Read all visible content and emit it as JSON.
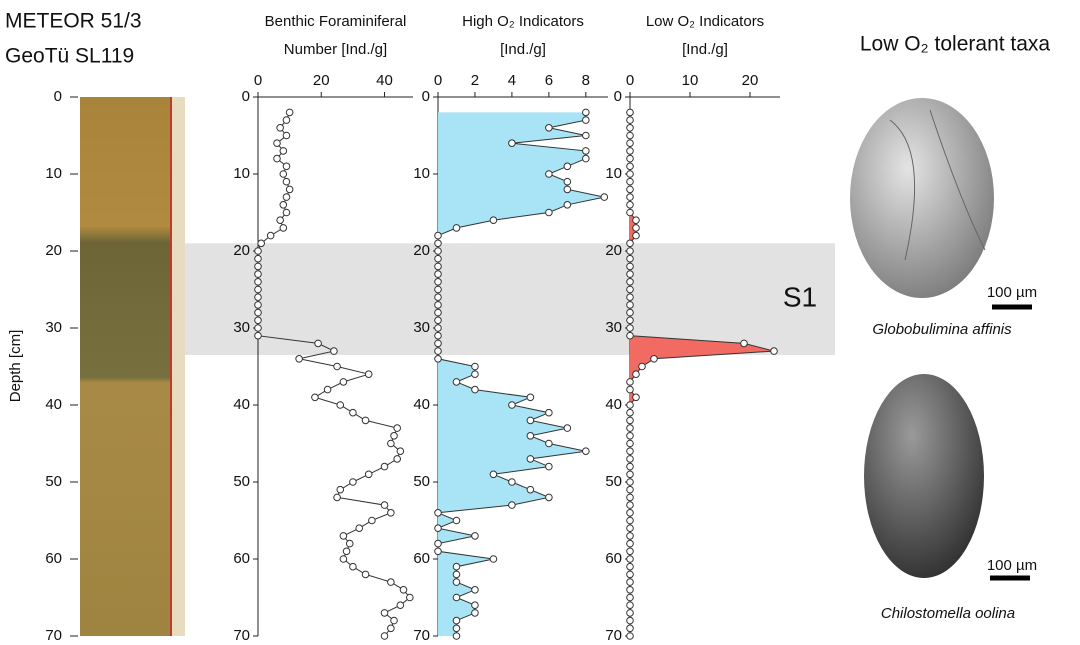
{
  "header": {
    "lines": [
      "METEOR 51/3",
      "GeoTü SL119"
    ]
  },
  "depth_axis": {
    "label": "Depth [cm]",
    "ylim": [
      0,
      70
    ],
    "yticks": [
      0,
      10,
      20,
      30,
      40,
      50,
      60,
      70
    ]
  },
  "band": {
    "label": "S1",
    "ylim": [
      19,
      33.5
    ]
  },
  "chart_data": [
    {
      "type": "line",
      "title": "Benthic Foraminiferal",
      "xlabel": "Number [Ind./g]",
      "xlim": [
        0,
        49
      ],
      "xticks": [
        0,
        20,
        40
      ],
      "ylim": [
        0,
        70
      ],
      "yticks": [
        0,
        10,
        20,
        30,
        40,
        50,
        60,
        70
      ],
      "y": [
        2,
        3,
        4,
        5,
        6,
        7,
        8,
        9,
        10,
        11,
        12,
        13,
        14,
        15,
        16,
        17,
        18,
        19,
        20,
        21,
        22,
        23,
        24,
        25,
        26,
        27,
        28,
        29,
        30,
        31,
        32,
        33,
        34,
        35,
        36,
        37,
        38,
        39,
        40,
        41,
        42,
        43,
        44,
        45,
        46,
        47,
        48,
        49,
        50,
        51,
        52,
        53,
        54,
        55,
        56,
        57,
        58,
        59,
        60,
        61,
        62,
        63,
        64,
        65,
        66,
        67,
        68,
        69,
        70
      ],
      "values": [
        10,
        9,
        7,
        9,
        6,
        8,
        6,
        9,
        8,
        9,
        10,
        9,
        8,
        9,
        7,
        8,
        4,
        1,
        0,
        0,
        0,
        0,
        0,
        0,
        0,
        0,
        0,
        0,
        0,
        0,
        19,
        24,
        13,
        25,
        35,
        27,
        22,
        18,
        26,
        30,
        34,
        44,
        43,
        42,
        45,
        44,
        40,
        35,
        30,
        26,
        25,
        40,
        42,
        36,
        32,
        27,
        29,
        28,
        27,
        30,
        34,
        42,
        46,
        48,
        45,
        40,
        43,
        42,
        40
      ]
    },
    {
      "type": "area",
      "title": "High O₂ Indicators",
      "xlabel": "[Ind./g]",
      "color": "#a8e4f5",
      "xlim": [
        0,
        9.2
      ],
      "xticks": [
        0,
        2,
        4,
        6,
        8
      ],
      "ylim": [
        0,
        70
      ],
      "yticks": [
        0,
        10,
        20,
        30,
        40,
        50,
        60,
        70
      ],
      "y": [
        2,
        3,
        4,
        5,
        6,
        7,
        8,
        9,
        10,
        11,
        12,
        13,
        14,
        15,
        16,
        17,
        18,
        19,
        20,
        21,
        22,
        23,
        24,
        25,
        26,
        27,
        28,
        29,
        30,
        31,
        32,
        33,
        34,
        35,
        36,
        37,
        38,
        39,
        40,
        41,
        42,
        43,
        44,
        45,
        46,
        47,
        48,
        49,
        50,
        51,
        52,
        53,
        54,
        55,
        56,
        57,
        58,
        59,
        60,
        61,
        62,
        63,
        64,
        65,
        66,
        67,
        68,
        69,
        70
      ],
      "values": [
        8,
        8,
        6,
        8,
        4,
        8,
        8,
        7,
        6,
        7,
        7,
        9,
        7,
        6,
        3,
        1,
        0,
        0,
        0,
        0,
        0,
        0,
        0,
        0,
        0,
        0,
        0,
        0,
        0,
        0,
        0,
        0,
        0,
        2,
        2,
        1,
        2,
        5,
        4,
        6,
        5,
        7,
        5,
        6,
        8,
        5,
        6,
        3,
        4,
        5,
        6,
        4,
        0,
        1,
        0,
        2,
        0,
        0,
        3,
        1,
        1,
        1,
        2,
        1,
        2,
        2,
        1,
        1,
        1
      ]
    },
    {
      "type": "area",
      "title": "Low O₂ Indicators",
      "xlabel": "[Ind./g]",
      "color": "#f26b63",
      "xlim": [
        0,
        25
      ],
      "xticks": [
        0,
        10,
        20
      ],
      "ylim": [
        0,
        70
      ],
      "yticks": [
        0,
        10,
        20,
        30,
        40,
        50,
        60,
        70
      ],
      "y": [
        2,
        3,
        4,
        5,
        6,
        7,
        8,
        9,
        10,
        11,
        12,
        13,
        14,
        15,
        16,
        17,
        18,
        19,
        20,
        21,
        22,
        23,
        24,
        25,
        26,
        27,
        28,
        29,
        30,
        31,
        32,
        33,
        34,
        35,
        36,
        37,
        38,
        39,
        40,
        41,
        42,
        43,
        44,
        45,
        46,
        47,
        48,
        49,
        50,
        51,
        52,
        53,
        54,
        55,
        56,
        57,
        58,
        59,
        60,
        61,
        62,
        63,
        64,
        65,
        66,
        67,
        68,
        69,
        70
      ],
      "values": [
        0,
        0,
        0,
        0,
        0,
        0,
        0,
        0,
        0,
        0,
        0,
        0,
        0,
        0,
        1,
        1,
        1,
        0,
        0,
        0,
        0,
        0,
        0,
        0,
        0,
        0,
        0,
        0,
        0,
        0,
        19,
        24,
        4,
        2,
        1,
        0,
        0,
        1,
        0,
        0,
        0,
        0,
        0,
        0,
        0,
        0,
        0,
        0,
        0,
        0,
        0,
        0,
        0,
        0,
        0,
        0,
        0,
        0,
        0,
        0,
        0,
        0,
        0,
        0,
        0,
        0,
        0,
        0,
        0
      ]
    }
  ],
  "panel": {
    "title": "Low O₂ tolerant taxa",
    "specimens": [
      {
        "scale": "100 µm",
        "name": "Globobulimina affinis"
      },
      {
        "scale": "100 µm",
        "name": "Chilostomella oolina"
      }
    ]
  }
}
